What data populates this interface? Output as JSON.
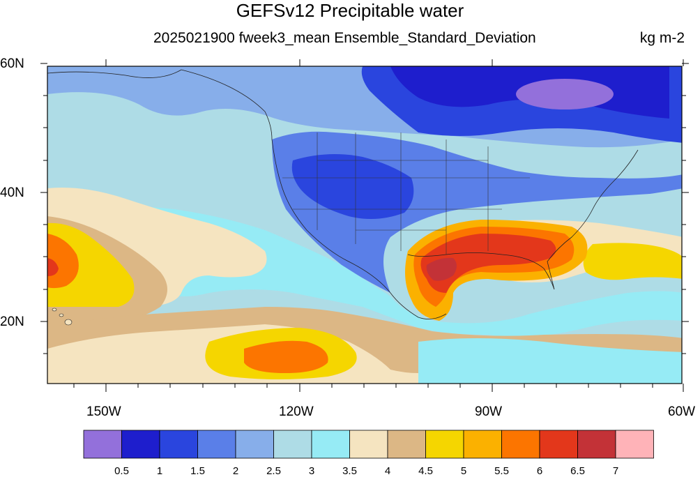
{
  "title": "GEFSv12 Precipitable water",
  "subtitle": "2025021900 fweek3_mean Ensemble_Standard_Deviation",
  "units": "kg m-2",
  "map": {
    "projection": "cylindrical equidistant",
    "lon_range": [
      -160,
      -57
    ],
    "lat_range": [
      10,
      60
    ],
    "lat_tick_labels": [
      "60N",
      "40N",
      "20N"
    ],
    "lon_tick_labels": [
      "150W",
      "120W",
      "90W",
      "60W"
    ],
    "features": [
      "coastlines",
      "US state boundaries",
      "country boundaries"
    ]
  },
  "colorbar": {
    "colors": [
      "#9370DB",
      "#1E1ECD",
      "#2A45DE",
      "#5A7FE8",
      "#87AEEA",
      "#AEDCE6",
      "#96EBF5",
      "#F5E4C0",
      "#DCB785",
      "#F5D600",
      "#FBB100",
      "#FC7500",
      "#E3371B",
      "#C33237",
      "#FFB3B8"
    ],
    "labels": [
      "0.5",
      "1",
      "1.5",
      "2",
      "2.5",
      "3",
      "3.5",
      "4",
      "4.5",
      "5",
      "5.5",
      "6",
      "6.5",
      "7"
    ]
  }
}
